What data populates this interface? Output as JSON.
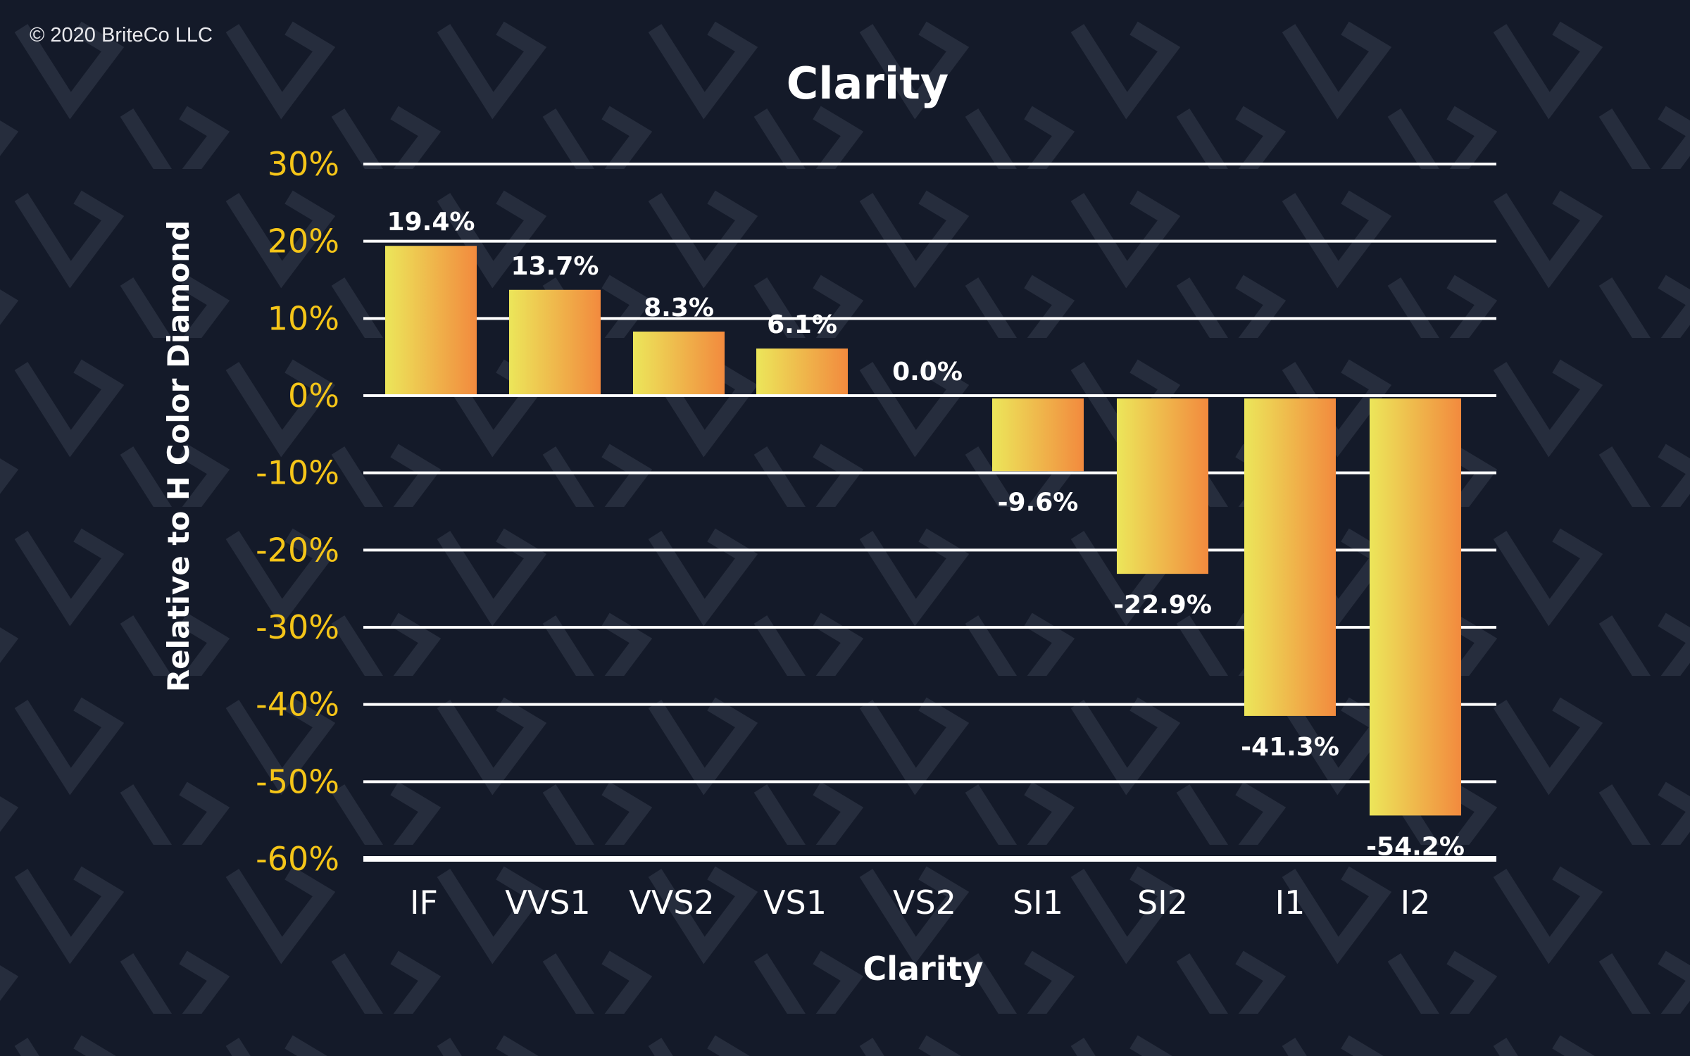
{
  "copyright": "© 2020 BriteCo LLC",
  "chart_data": {
    "type": "bar",
    "title": "Clarity",
    "xlabel": "Clarity",
    "ylabel": "Relative to H Color Diamond",
    "categories": [
      "IF",
      "VVS1",
      "VVS2",
      "VS1",
      "VS2",
      "SI1",
      "SI2",
      "I1",
      "I2"
    ],
    "values": [
      19.4,
      13.7,
      8.3,
      6.1,
      0.0,
      -9.6,
      -22.9,
      -41.3,
      -54.2
    ],
    "data_labels": [
      "19.4%",
      "13.7%",
      "8.3%",
      "6.1%",
      "0.0%",
      "-9.6%",
      "-22.9%",
      "-41.3%",
      "-54.2%"
    ],
    "ylim": [
      -60,
      30
    ],
    "yticks": [
      30,
      20,
      10,
      0,
      -10,
      -20,
      -30,
      -40,
      -50,
      -60
    ],
    "ytick_labels": [
      "30%",
      "20%",
      "10%",
      "0%",
      "-10%",
      "-20%",
      "-30%",
      "-40%",
      "-50%",
      "-60%"
    ],
    "grid": true,
    "legend": "none",
    "colors": {
      "bar_start": "#ece65a",
      "bar_end": "#f28a3e",
      "tick_labels": "#f5c518",
      "background": "#141a29",
      "text": "#ffffff"
    }
  }
}
